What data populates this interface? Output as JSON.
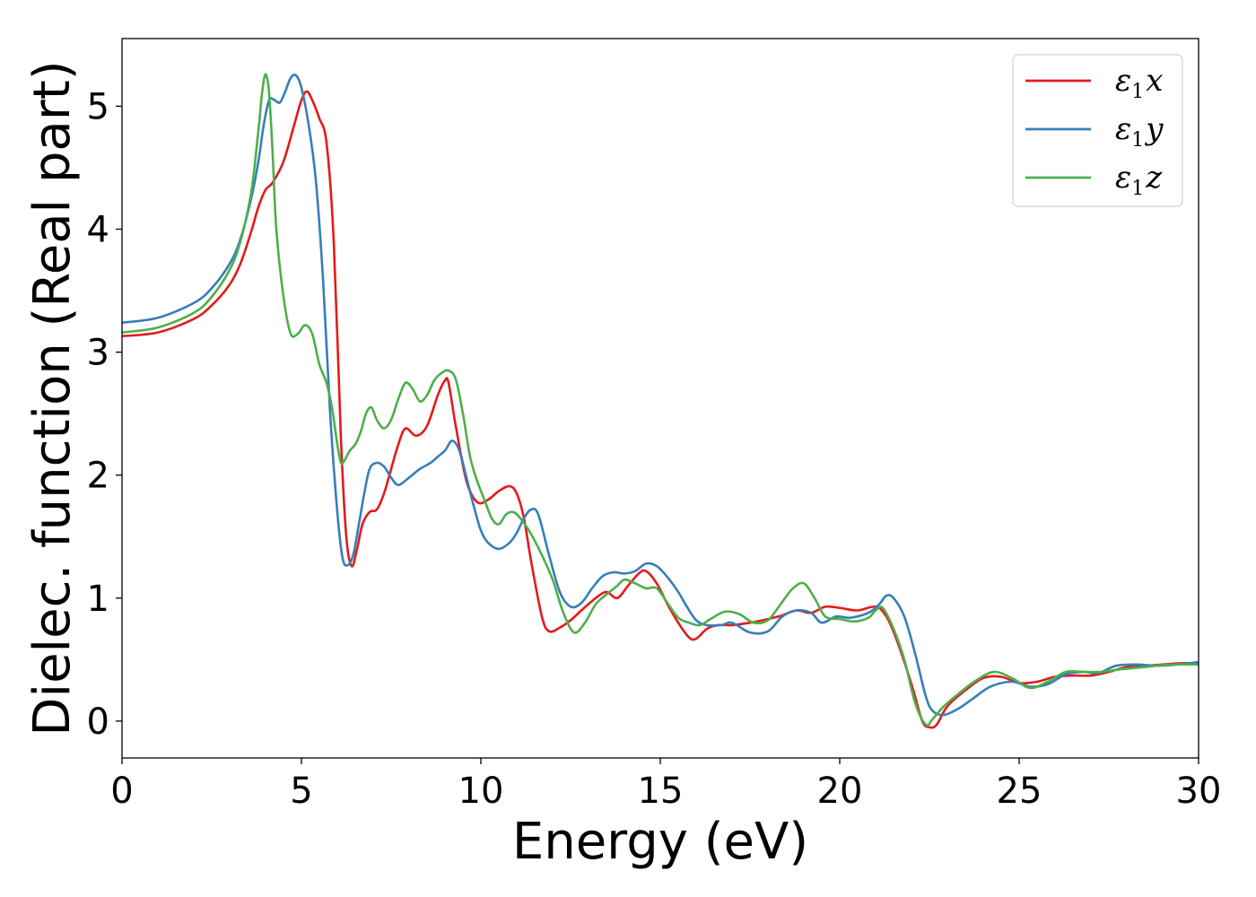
{
  "chart_data": {
    "type": "line",
    "title": "",
    "xlabel": "Energy (eV)",
    "ylabel": "Dielec. function (Real part)",
    "xlim": [
      0,
      30
    ],
    "ylim": [
      -0.3,
      5.55
    ],
    "xticks": [
      0,
      5,
      10,
      15,
      20,
      25,
      30
    ],
    "yticks": [
      0,
      1,
      2,
      3,
      4,
      5
    ],
    "xtick_labels": [
      "0",
      "5",
      "10",
      "15",
      "20",
      "25",
      "30"
    ],
    "ytick_labels": [
      "0",
      "1",
      "2",
      "3",
      "4",
      "5"
    ],
    "grid": false,
    "legend_position": "top-right",
    "series": [
      {
        "name": "ε1x",
        "legend_main": "ε",
        "legend_sub": "1",
        "legend_var": "x",
        "color": "#e41a1c",
        "x": [
          0,
          1,
          2,
          2.5,
          3,
          3.3,
          3.6,
          3.8,
          4.0,
          4.2,
          4.5,
          4.8,
          5.0,
          5.15,
          5.3,
          5.5,
          5.7,
          5.9,
          6.1,
          6.25,
          6.4,
          6.55,
          6.7,
          6.9,
          7.1,
          7.3,
          7.5,
          7.7,
          7.9,
          8.2,
          8.5,
          8.8,
          9.0,
          9.1,
          9.3,
          9.6,
          9.9,
          10.2,
          10.5,
          10.8,
          11.0,
          11.2,
          11.4,
          11.7,
          11.9,
          12.2,
          12.5,
          12.8,
          13.2,
          13.5,
          13.8,
          14.1,
          14.4,
          14.6,
          14.9,
          15.2,
          15.5,
          15.8,
          16.0,
          16.3,
          16.6,
          17.0,
          17.5,
          18.0,
          18.4,
          18.8,
          19.2,
          19.6,
          20.0,
          20.5,
          21.0,
          21.3,
          21.6,
          22.0,
          22.3,
          22.5,
          22.7,
          23.0,
          23.5,
          24.0,
          24.5,
          25.0,
          25.5,
          26.0,
          26.5,
          27.0,
          27.5,
          28.0,
          28.5,
          29.0,
          29.5,
          30.0
        ],
        "y": [
          3.13,
          3.16,
          3.27,
          3.38,
          3.55,
          3.72,
          3.98,
          4.18,
          4.32,
          4.38,
          4.55,
          4.85,
          5.05,
          5.12,
          5.05,
          4.9,
          4.7,
          3.9,
          2.3,
          1.5,
          1.26,
          1.4,
          1.6,
          1.7,
          1.72,
          1.85,
          2.05,
          2.25,
          2.38,
          2.32,
          2.4,
          2.65,
          2.77,
          2.75,
          2.4,
          1.95,
          1.78,
          1.8,
          1.87,
          1.91,
          1.85,
          1.65,
          1.3,
          0.85,
          0.73,
          0.76,
          0.82,
          0.9,
          1.0,
          1.05,
          1.0,
          1.1,
          1.2,
          1.22,
          1.12,
          0.95,
          0.8,
          0.68,
          0.67,
          0.75,
          0.78,
          0.78,
          0.8,
          0.83,
          0.86,
          0.9,
          0.88,
          0.93,
          0.92,
          0.9,
          0.93,
          0.85,
          0.65,
          0.3,
          0.0,
          -0.05,
          -0.03,
          0.12,
          0.25,
          0.35,
          0.36,
          0.31,
          0.32,
          0.36,
          0.37,
          0.37,
          0.4,
          0.44,
          0.45,
          0.46,
          0.47,
          0.47
        ]
      },
      {
        "name": "ε1y",
        "legend_main": "ε",
        "legend_sub": "1",
        "legend_var": "y",
        "color": "#377eb8",
        "x": [
          0,
          1,
          2,
          2.5,
          3,
          3.3,
          3.6,
          3.8,
          3.95,
          4.1,
          4.25,
          4.4,
          4.55,
          4.7,
          4.85,
          5.0,
          5.2,
          5.4,
          5.6,
          5.8,
          6.0,
          6.15,
          6.3,
          6.45,
          6.6,
          6.75,
          6.9,
          7.1,
          7.3,
          7.5,
          7.7,
          8.0,
          8.3,
          8.6,
          8.8,
          9.0,
          9.2,
          9.4,
          9.6,
          9.8,
          10.0,
          10.2,
          10.5,
          10.8,
          11.0,
          11.2,
          11.4,
          11.6,
          11.9,
          12.2,
          12.5,
          12.8,
          13.1,
          13.4,
          13.7,
          14.0,
          14.3,
          14.6,
          14.9,
          15.2,
          15.5,
          15.7,
          16.0,
          16.3,
          16.7,
          17.0,
          17.5,
          18.0,
          18.4,
          18.8,
          19.2,
          19.5,
          19.9,
          20.3,
          20.8,
          21.1,
          21.3,
          21.5,
          21.8,
          22.1,
          22.4,
          22.6,
          22.9,
          23.3,
          23.7,
          24.2,
          24.8,
          25.3,
          25.8,
          26.3,
          26.8,
          27.2,
          27.7,
          28.3,
          28.8,
          29.4,
          30.0
        ],
        "y": [
          3.24,
          3.28,
          3.4,
          3.52,
          3.72,
          3.92,
          4.25,
          4.55,
          4.85,
          5.05,
          5.05,
          5.03,
          5.12,
          5.23,
          5.25,
          5.15,
          4.85,
          4.4,
          3.6,
          2.5,
          1.7,
          1.32,
          1.27,
          1.36,
          1.6,
          1.85,
          2.05,
          2.1,
          2.07,
          1.98,
          1.92,
          1.98,
          2.05,
          2.1,
          2.15,
          2.2,
          2.28,
          2.2,
          1.98,
          1.75,
          1.55,
          1.45,
          1.4,
          1.45,
          1.53,
          1.65,
          1.72,
          1.68,
          1.35,
          1.05,
          0.93,
          0.96,
          1.08,
          1.18,
          1.21,
          1.2,
          1.22,
          1.28,
          1.26,
          1.17,
          1.05,
          0.95,
          0.82,
          0.78,
          0.78,
          0.8,
          0.72,
          0.73,
          0.85,
          0.9,
          0.88,
          0.8,
          0.85,
          0.84,
          0.88,
          0.95,
          1.02,
          1.0,
          0.85,
          0.55,
          0.2,
          0.08,
          0.05,
          0.1,
          0.18,
          0.28,
          0.32,
          0.28,
          0.3,
          0.38,
          0.4,
          0.39,
          0.45,
          0.46,
          0.45,
          0.46,
          0.48
        ]
      },
      {
        "name": "ε1z",
        "legend_main": "ε",
        "legend_sub": "1",
        "legend_var": "z",
        "color": "#4daf4a",
        "x": [
          0,
          1,
          2,
          2.5,
          3,
          3.3,
          3.6,
          3.8,
          3.9,
          4.0,
          4.1,
          4.2,
          4.3,
          4.5,
          4.7,
          4.9,
          5.1,
          5.3,
          5.5,
          5.7,
          5.85,
          6.0,
          6.1,
          6.2,
          6.35,
          6.5,
          6.65,
          6.8,
          6.95,
          7.1,
          7.3,
          7.5,
          7.7,
          7.9,
          8.1,
          8.3,
          8.5,
          8.7,
          8.9,
          9.1,
          9.3,
          9.5,
          9.7,
          9.9,
          10.1,
          10.3,
          10.5,
          10.7,
          10.9,
          11.1,
          11.4,
          11.7,
          12.0,
          12.3,
          12.6,
          12.9,
          13.2,
          13.5,
          13.8,
          14.0,
          14.3,
          14.6,
          14.9,
          15.2,
          15.5,
          15.8,
          16.1,
          16.4,
          16.8,
          17.2,
          17.6,
          18.0,
          18.4,
          18.7,
          19.0,
          19.3,
          19.6,
          20.0,
          20.4,
          20.8,
          21.0,
          21.2,
          21.5,
          21.8,
          22.1,
          22.4,
          22.6,
          22.9,
          23.3,
          23.8,
          24.3,
          24.8,
          25.3,
          25.8,
          26.3,
          26.8,
          27.3,
          27.8,
          28.5,
          29.2,
          30.0
        ],
        "y": [
          3.16,
          3.2,
          3.32,
          3.45,
          3.67,
          3.9,
          4.3,
          4.8,
          5.1,
          5.26,
          5.1,
          4.6,
          4.0,
          3.45,
          3.15,
          3.15,
          3.22,
          3.15,
          2.9,
          2.75,
          2.55,
          2.25,
          2.1,
          2.12,
          2.2,
          2.25,
          2.35,
          2.5,
          2.55,
          2.45,
          2.38,
          2.45,
          2.62,
          2.75,
          2.7,
          2.6,
          2.65,
          2.77,
          2.83,
          2.85,
          2.78,
          2.5,
          2.15,
          1.95,
          1.8,
          1.65,
          1.6,
          1.68,
          1.7,
          1.65,
          1.52,
          1.35,
          1.15,
          0.88,
          0.72,
          0.8,
          0.95,
          1.03,
          1.1,
          1.15,
          1.12,
          1.08,
          1.08,
          0.96,
          0.84,
          0.8,
          0.78,
          0.83,
          0.89,
          0.87,
          0.8,
          0.82,
          0.97,
          1.08,
          1.12,
          1.0,
          0.85,
          0.83,
          0.81,
          0.84,
          0.9,
          0.92,
          0.75,
          0.5,
          0.15,
          -0.03,
          0.02,
          0.12,
          0.22,
          0.33,
          0.4,
          0.35,
          0.27,
          0.32,
          0.4,
          0.4,
          0.4,
          0.42,
          0.44,
          0.46,
          0.46
        ]
      }
    ]
  }
}
